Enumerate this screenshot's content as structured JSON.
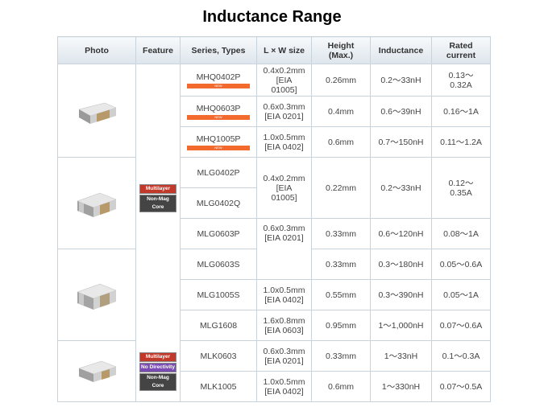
{
  "title": "Inductance Range",
  "headers": {
    "photo": "Photo",
    "feature": "Feature",
    "series": "Series, Types",
    "size": "L × W size",
    "height_l1": "Height",
    "height_l2": "(Max.)",
    "inductance": "Inductance",
    "current_l1": "Rated",
    "current_l2": "current"
  },
  "new_label": "NEW",
  "features": {
    "multilayer": "Multilayer",
    "non_mag_core": "Non-Mag Core",
    "no_directivity": "No Directivity"
  },
  "rows": [
    {
      "series": "MHQ0402P",
      "size_l1": "0.4x0.2mm",
      "size_l2": "[EIA",
      "size_l3": "01005]",
      "height": "0.26mm",
      "inductance": "0.2～33nH",
      "current_l1": "0.13～",
      "current_l2": "0.32A"
    },
    {
      "series": "MHQ0603P",
      "size_l1": "0.6x0.3mm",
      "size_l2": "[EIA 0201]",
      "height": "0.4mm",
      "inductance": "0.6～39nH",
      "current": "0.16～1A"
    },
    {
      "series": "MHQ1005P",
      "size_l1": "1.0x0.5mm",
      "size_l2": "[EIA 0402]",
      "height": "0.6mm",
      "inductance": "0.7～150nH",
      "current": "0.11～1.2A"
    },
    {
      "series": "MLG0402P",
      "size_l1": "0.4x0.2mm",
      "size_l2": "[EIA",
      "size_l3": "01005]",
      "height": "0.22mm",
      "inductance": "0.2～33nH",
      "current_l1": "0.12～",
      "current_l2": "0.35A"
    },
    {
      "series": "MLG0402Q"
    },
    {
      "series": "MLG0603P",
      "size_l1": "0.6x0.3mm",
      "size_l2": "[EIA 0201]",
      "height": "0.33mm",
      "inductance": "0.6～120nH",
      "current": "0.08～1A"
    },
    {
      "series": "MLG0603S",
      "height": "0.33mm",
      "inductance": "0.3～180nH",
      "current": "0.05～0.6A"
    },
    {
      "series": "MLG1005S",
      "size_l1": "1.0x0.5mm",
      "size_l2": "[EIA 0402]",
      "height": "0.55mm",
      "inductance": "0.3～390nH",
      "current": "0.05～1A"
    },
    {
      "series": "MLG1608",
      "size_l1": "1.6x0.8mm",
      "size_l2": "[EIA 0603]",
      "height": "0.95mm",
      "inductance": "1～1,000nH",
      "current": "0.07～0.6A"
    },
    {
      "series": "MLK0603",
      "size_l1": "0.6x0.3mm",
      "size_l2": "[EIA 0201]",
      "height": "0.33mm",
      "inductance": "1～33nH",
      "current": "0.1～0.3A"
    },
    {
      "series": "MLK1005",
      "size_l1": "1.0x0.5mm",
      "size_l2": "[EIA 0402]",
      "height": "0.6mm",
      "inductance": "1～330nH",
      "current": "0.07～0.5A"
    }
  ],
  "colors": {
    "new_bar": "#f26a2e",
    "multilayer_tag": "#c0392b",
    "no_directivity_tag": "#7a4bb3",
    "non_mag_tag": "#444444",
    "header_gradient_top": "#f7f9fb",
    "header_gradient_bottom": "#dde5ec"
  },
  "icons": [
    "chip-component-icon"
  ]
}
